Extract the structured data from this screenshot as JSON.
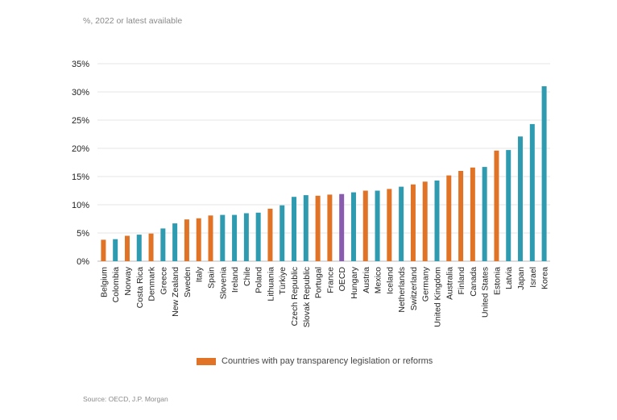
{
  "subtitle": "%, 2022 or latest available",
  "source": "Source: OECD, J.P. Morgan",
  "legend": {
    "label": "Countries with pay transparency legislation or reforms",
    "color": "#e07325"
  },
  "colors": {
    "transparency": "#e07325",
    "other": "#2f9bb0",
    "oecd": "#8a5cb0",
    "grid": "#e6e6e6",
    "axis": "#bbbbbb"
  },
  "chart_data": {
    "type": "bar",
    "ylim": [
      0,
      35
    ],
    "yticks": [
      0,
      5,
      10,
      15,
      20,
      25,
      30,
      35
    ],
    "ytick_labels": [
      "0%",
      "5%",
      "10%",
      "15%",
      "20%",
      "25%",
      "30%",
      "35%"
    ],
    "grid": true,
    "legend_position": "bottom",
    "categories": [
      "Belgium",
      "Colombia",
      "Norway",
      "Costa Rica",
      "Denmark",
      "Greece",
      "New Zealand",
      "Sweden",
      "Italy",
      "Spain",
      "Slovenia",
      "Ireland",
      "Chile",
      "Poland",
      "Lithuania",
      "Türkiye",
      "Czech Republic",
      "Slovak Republic",
      "Portugal",
      "France",
      "OECD",
      "Hungary",
      "Austria",
      "Mexico",
      "Iceland",
      "Netherlands",
      "Switzerland",
      "Germany",
      "United Kingdom",
      "Australia",
      "Finland",
      "Canada",
      "United States",
      "Estonia",
      "Latvia",
      "Japan",
      "Israel",
      "Korea"
    ],
    "values": [
      3.8,
      3.9,
      4.5,
      4.7,
      4.9,
      5.8,
      6.7,
      7.4,
      7.6,
      8.1,
      8.2,
      8.2,
      8.5,
      8.6,
      9.3,
      9.9,
      11.4,
      11.7,
      11.6,
      11.8,
      11.9,
      12.2,
      12.5,
      12.5,
      12.8,
      13.2,
      13.6,
      14.1,
      14.3,
      15.2,
      16.0,
      16.6,
      16.7,
      19.6,
      19.7,
      22.1,
      24.3,
      31.0
    ],
    "groups": [
      "transparency",
      "other",
      "transparency",
      "other",
      "transparency",
      "other",
      "other",
      "transparency",
      "transparency",
      "transparency",
      "other",
      "other",
      "other",
      "other",
      "transparency",
      "other",
      "other",
      "other",
      "transparency",
      "transparency",
      "oecd",
      "other",
      "transparency",
      "other",
      "transparency",
      "other",
      "transparency",
      "transparency",
      "other",
      "transparency",
      "transparency",
      "transparency",
      "other",
      "transparency",
      "other",
      "other",
      "other",
      "other"
    ]
  }
}
